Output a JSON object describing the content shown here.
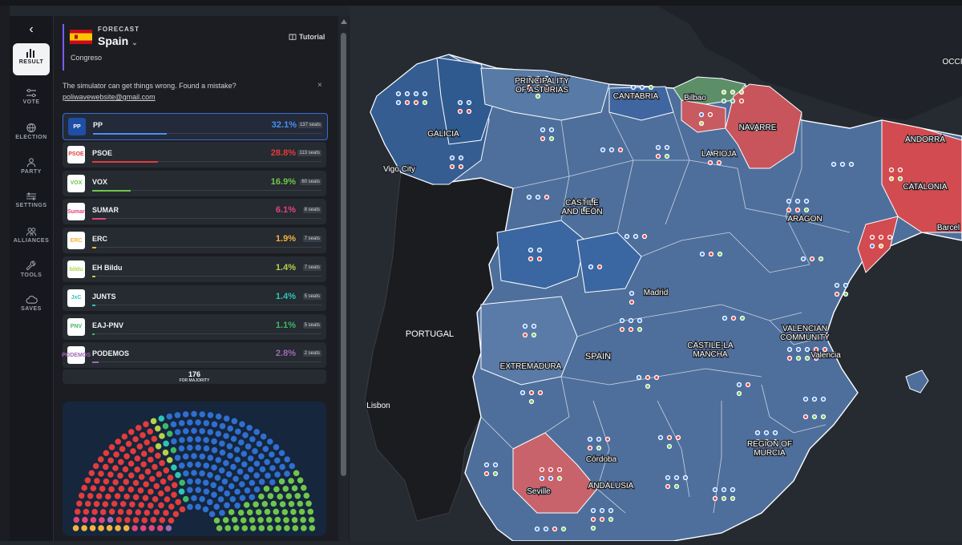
{
  "nav": {
    "back": "‹",
    "items": [
      {
        "label": "RESULT",
        "icon": "bar-chart-icon",
        "active": true
      },
      {
        "label": "VOTE",
        "icon": "sliders-icon"
      },
      {
        "label": "ELECTION",
        "icon": "globe-icon"
      },
      {
        "label": "PARTY",
        "icon": "users-icon"
      },
      {
        "label": "SETTINGS",
        "icon": "settings-icon"
      },
      {
        "label": "ALLIANCES",
        "icon": "alliances-icon"
      },
      {
        "label": "TOOLS",
        "icon": "wrench-icon"
      },
      {
        "label": "SAVES",
        "icon": "cloud-icon"
      }
    ]
  },
  "header": {
    "kicker": "FORECAST",
    "country": "Spain",
    "chamber": "Congreso",
    "tutorial": "Tutorial"
  },
  "notice": {
    "text": "The simulator can get things wrong. Found a mistake?",
    "email": "poliwavewebsite@gmail.com",
    "close": "×"
  },
  "parties": [
    {
      "name": "PP",
      "pct": "32.1%",
      "seats": "137 seats",
      "color": "#4a8ff0",
      "logo_text": "PP",
      "logo_bg": "#1e4fa6",
      "fill": 0.321
    },
    {
      "name": "PSOE",
      "pct": "28.8%",
      "seats": "113 seats",
      "color": "#e23c3c",
      "logo_text": "PSOE",
      "logo_bg": "#ffffff",
      "fill": 0.288
    },
    {
      "name": "VOX",
      "pct": "16.9%",
      "seats": "60 seats",
      "color": "#6fc64a",
      "logo_text": "VOX",
      "logo_bg": "#ffffff",
      "fill": 0.169
    },
    {
      "name": "SUMAR",
      "pct": "6.1%",
      "seats": "8 seats",
      "color": "#e2457a",
      "logo_text": "Sumar",
      "logo_bg": "#ffffff",
      "fill": 0.061
    },
    {
      "name": "ERC",
      "pct": "1.9%",
      "seats": "7 seats",
      "color": "#f2b33d",
      "logo_text": "ERC",
      "logo_bg": "#ffffff",
      "fill": 0.019
    },
    {
      "name": "EH Bildu",
      "pct": "1.4%",
      "seats": "7 seats",
      "color": "#b6d24a",
      "logo_text": "bildu",
      "logo_bg": "#ffffff",
      "fill": 0.014
    },
    {
      "name": "JUNTS",
      "pct": "1.4%",
      "seats": "5 seats",
      "color": "#2ec4b6",
      "logo_text": "JxC",
      "logo_bg": "#ffffff",
      "fill": 0.014
    },
    {
      "name": "EAJ-PNV",
      "pct": "1.1%",
      "seats": "5 seats",
      "color": "#3fb86a",
      "logo_text": "PNV",
      "logo_bg": "#ffffff",
      "fill": 0.011
    },
    {
      "name": "PODEMOS",
      "pct": "2.8%",
      "seats": "2 seats",
      "color": "#a06ab4",
      "logo_text": "PODEMOS",
      "logo_bg": "#ffffff",
      "fill": 0.028
    }
  ],
  "majority": {
    "number": "176",
    "label": "FOR MAJORITY"
  },
  "map_labels": {
    "galicia": "GALICIA",
    "asturias1": "PRINCIPALITY",
    "asturias2": "OF ASTURIAS",
    "cantabria": "CANTABRIA",
    "bilbao": "Bilbao",
    "navarre": "NAVARRE",
    "larioja": "LA RIOJA",
    "andorra": "ANDORRA",
    "catalonia": "CATALONIA",
    "barcelona": "Barcel",
    "vigo": "Vigo City",
    "castile1": "CASTILE",
    "castile2": "AND LEÓN",
    "aragon": "ARAGON",
    "madrid": "Madrid",
    "portugal": "PORTUGAL",
    "spain": "SPAIN",
    "valencia1": "VALENCIAN",
    "valencia2": "COMMUNITY",
    "valencia": "Valencia",
    "castlm1": "CASTILE-LA",
    "castlm2": "MANCHA",
    "extremadura": "EXTREMADURA",
    "lisbon": "Lisbon",
    "murcia1": "REGION OF",
    "murcia2": "MURCIA",
    "cordoba": "Córdoba",
    "seville": "Seville",
    "andalusia": "ANDALUSIA",
    "occi": "OCCI"
  }
}
